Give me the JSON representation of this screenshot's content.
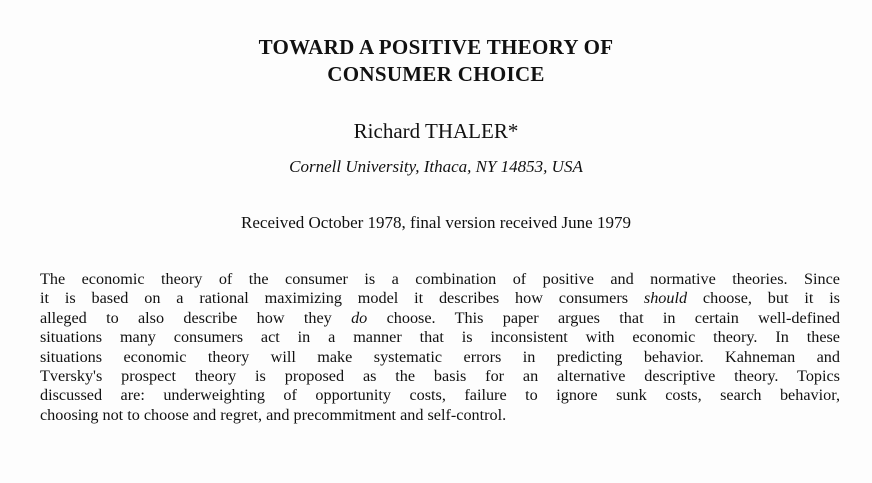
{
  "title": {
    "line1": "TOWARD A POSITIVE THEORY OF",
    "line2": "CONSUMER CHOICE"
  },
  "author": "Richard THALER*",
  "affiliation": "Cornell University, Ithaca, NY 14853, USA",
  "received": "Received October 1978, final version received June 1979",
  "abstract": {
    "l1": "The economic theory of the consumer is a combination of positive and normative theories. Since",
    "l2a": "it is based on a rational maximizing model it describes how consumers ",
    "l2b": "should",
    "l2c": " choose, but it is",
    "l3a": "alleged to also describe how they ",
    "l3b": "do",
    "l3c": " choose. This paper argues that in certain well-defined",
    "l4": "situations many consumers act in a manner that is inconsistent with economic theory. In these",
    "l5": "situations economic theory will make systematic errors in predicting behavior. Kahneman and",
    "l6": "Tversky's prospect theory is proposed as the basis for an alternative descriptive theory. Topics",
    "l7": "discussed are: underweighting of opportunity costs, failure to ignore sunk costs, search behavior,",
    "l8": "choosing not to choose and regret, and precommitment and self-control."
  }
}
